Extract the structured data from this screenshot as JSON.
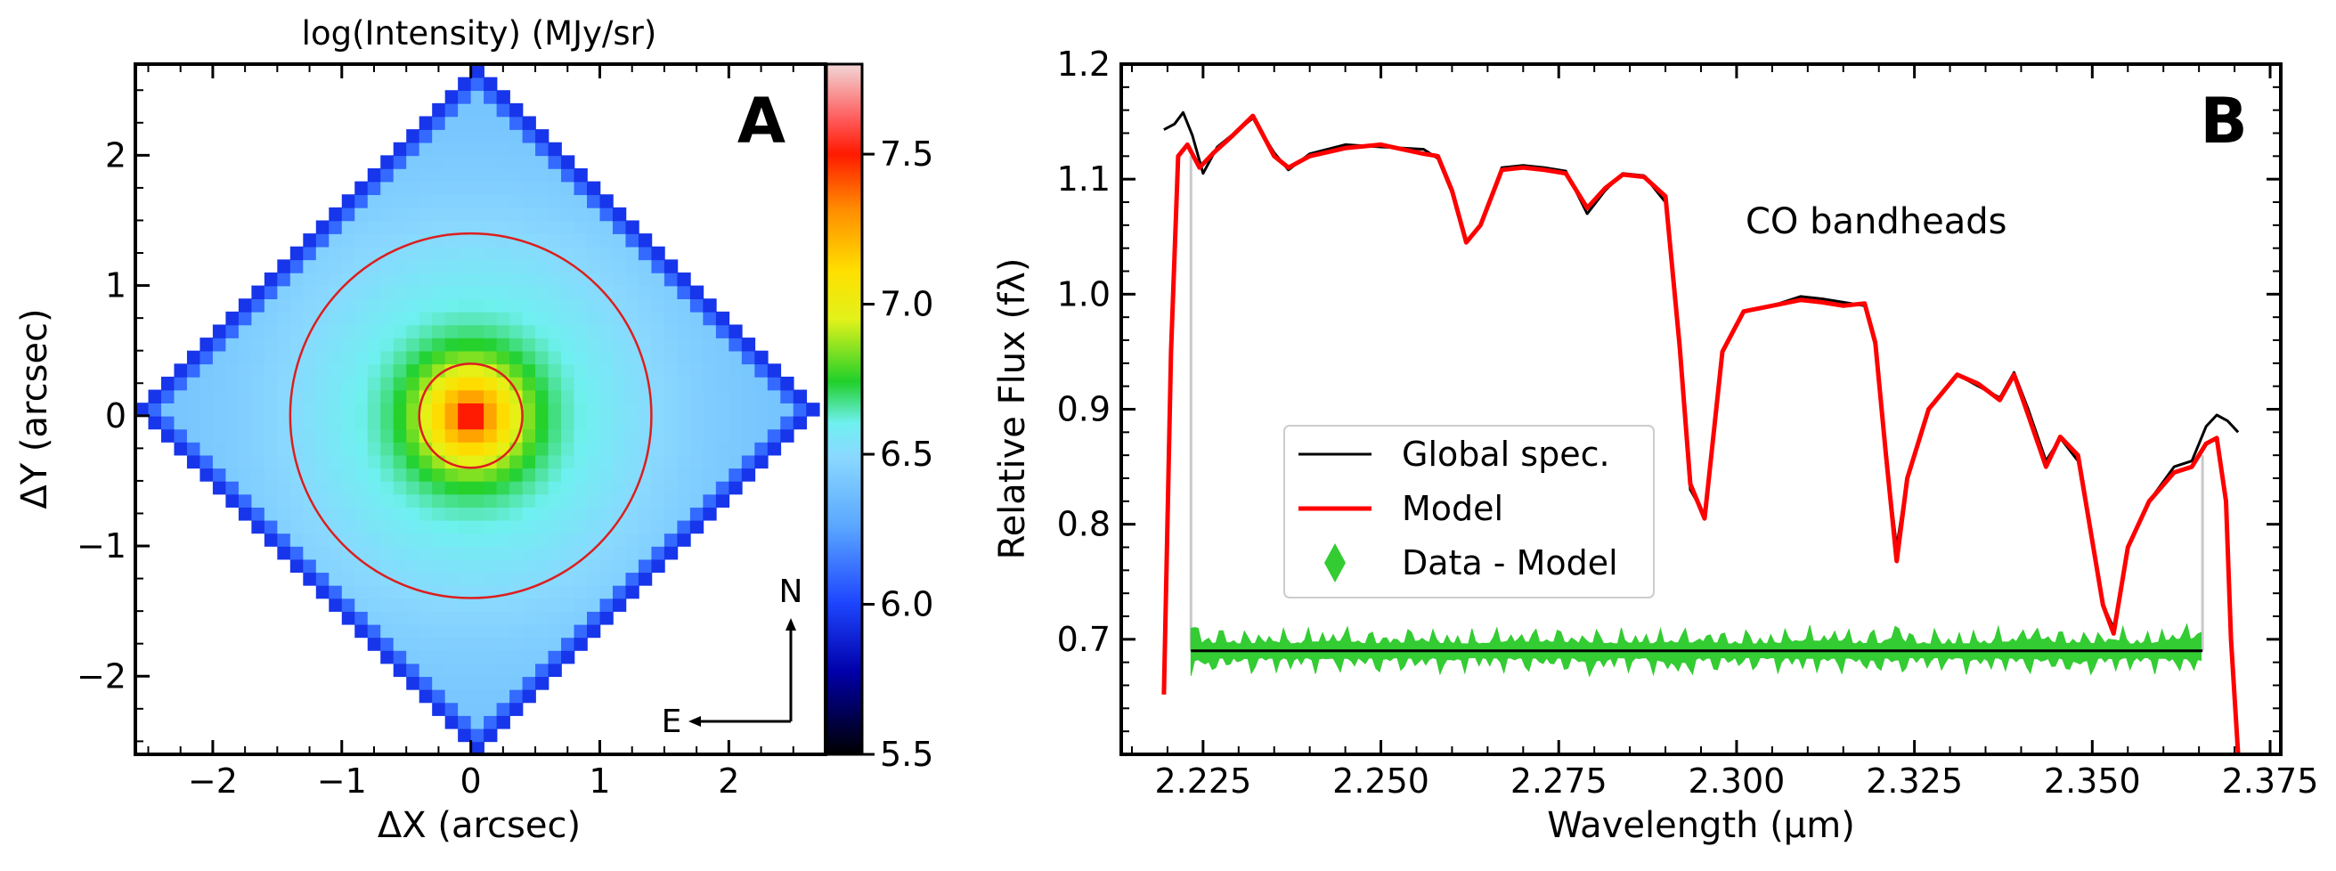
{
  "chart_data": [
    {
      "type": "heatmap",
      "panel_label": "A",
      "title": "log(Intensity) (MJy/sr)",
      "xlabel": "ΔX (arcsec)",
      "ylabel": "ΔY (arcsec)",
      "xlim": [
        -2.6,
        2.75
      ],
      "ylim": [
        -2.6,
        2.7
      ],
      "xticks": [
        -2,
        -1,
        0,
        1,
        2
      ],
      "xtick_labels": [
        "−2",
        "−1",
        "0",
        "1",
        "2"
      ],
      "yticks": [
        -2,
        -1,
        0,
        1,
        2
      ],
      "ytick_labels": [
        "−2",
        "−1",
        "0",
        "1",
        "2"
      ],
      "field_center": [
        0.05,
        0.05
      ],
      "field_halfwidth": 2.63,
      "pixel_scale": 0.1,
      "peak_value": 7.7,
      "core_value": 7.35,
      "core_width": 0.28,
      "halo_value": 6.7,
      "halo_width": 1.0,
      "outer_value": 6.38,
      "circles": [
        {
          "center": [
            0,
            0
          ],
          "radius": 0.4,
          "color": "#dc1e1e"
        },
        {
          "center": [
            0,
            0
          ],
          "radius": 1.4,
          "color": "#dc1e1e"
        }
      ],
      "colorbar": {
        "min": 5.5,
        "max": 7.8,
        "ticks": [
          5.5,
          6.0,
          6.5,
          7.0,
          7.5
        ],
        "tick_labels": [
          "5.5",
          "6.0",
          "6.5",
          "7.0",
          "7.5"
        ]
      },
      "compass": {
        "north": "N",
        "east": "E"
      }
    },
    {
      "type": "line",
      "panel_label": "B",
      "xlabel": "Wavelength (μm)",
      "ylabel": "Relative Flux (fλ)",
      "xlim": [
        2.2135,
        2.3765
      ],
      "ylim": [
        0.6,
        1.2
      ],
      "xticks": [
        2.225,
        2.25,
        2.275,
        2.3,
        2.325,
        2.35,
        2.375
      ],
      "xtick_labels": [
        "2.225",
        "2.250",
        "2.275",
        "2.300",
        "2.325",
        "2.350",
        "2.375"
      ],
      "yticks": [
        0.7,
        0.8,
        0.9,
        1.0,
        1.1,
        1.2
      ],
      "ytick_labels": [
        "0.7",
        "0.8",
        "0.9",
        "1.0",
        "1.1",
        "1.2"
      ],
      "annotation": "CO bandheads",
      "fit_window": [
        2.2233,
        2.3655
      ],
      "residual_offset": 0.69,
      "series": [
        {
          "name": "Global spec.",
          "color": "#000000",
          "x": [
            2.2195,
            2.221,
            2.2222,
            2.2235,
            2.225,
            2.227,
            2.229,
            2.232,
            2.235,
            2.237,
            2.24,
            2.245,
            2.25,
            2.253,
            2.256,
            2.258,
            2.26,
            2.262,
            2.264,
            2.267,
            2.27,
            2.273,
            2.276,
            2.279,
            2.2815,
            2.284,
            2.287,
            2.29,
            2.292,
            2.2935,
            2.2955,
            2.298,
            2.301,
            2.305,
            2.309,
            2.312,
            2.315,
            2.318,
            2.3195,
            2.321,
            2.3225,
            2.324,
            2.327,
            2.331,
            2.334,
            2.337,
            2.339,
            2.341,
            2.3435,
            2.3455,
            2.348,
            2.3515,
            2.353,
            2.355,
            2.358,
            2.3615,
            2.364,
            2.366,
            2.3675,
            2.369,
            2.3705
          ],
          "y": [
            1.143,
            1.148,
            1.158,
            1.138,
            1.105,
            1.128,
            1.138,
            1.153,
            1.123,
            1.108,
            1.122,
            1.13,
            1.128,
            1.127,
            1.126,
            1.118,
            1.088,
            1.045,
            1.06,
            1.11,
            1.112,
            1.11,
            1.107,
            1.07,
            1.09,
            1.105,
            1.103,
            1.08,
            0.95,
            0.83,
            0.808,
            0.95,
            0.985,
            0.99,
            0.998,
            0.996,
            0.993,
            0.99,
            0.955,
            0.86,
            0.78,
            0.84,
            0.9,
            0.93,
            0.92,
            0.91,
            0.932,
            0.9,
            0.855,
            0.875,
            0.855,
            0.73,
            0.71,
            0.78,
            0.82,
            0.85,
            0.855,
            0.885,
            0.895,
            0.89,
            0.88
          ]
        },
        {
          "name": "Model",
          "color": "#ff0000",
          "x": [
            2.2195,
            2.2205,
            2.2215,
            2.2228,
            2.2245,
            2.2265,
            2.229,
            2.232,
            2.235,
            2.237,
            2.24,
            2.245,
            2.25,
            2.253,
            2.256,
            2.258,
            2.26,
            2.262,
            2.264,
            2.267,
            2.27,
            2.273,
            2.276,
            2.279,
            2.2815,
            2.284,
            2.287,
            2.29,
            2.292,
            2.2935,
            2.2955,
            2.298,
            2.301,
            2.305,
            2.309,
            2.312,
            2.315,
            2.318,
            2.3195,
            2.321,
            2.3225,
            2.324,
            2.327,
            2.331,
            2.334,
            2.337,
            2.339,
            2.341,
            2.3435,
            2.3455,
            2.348,
            2.3515,
            2.353,
            2.355,
            2.358,
            2.3615,
            2.364,
            2.366,
            2.3675,
            2.3688,
            2.3695,
            2.3705
          ],
          "y": [
            0.652,
            0.95,
            1.12,
            1.13,
            1.11,
            1.123,
            1.137,
            1.155,
            1.12,
            1.11,
            1.12,
            1.127,
            1.13,
            1.126,
            1.122,
            1.12,
            1.09,
            1.045,
            1.06,
            1.108,
            1.11,
            1.108,
            1.105,
            1.075,
            1.092,
            1.104,
            1.102,
            1.085,
            0.955,
            0.835,
            0.805,
            0.95,
            0.985,
            0.99,
            0.995,
            0.993,
            0.99,
            0.992,
            0.958,
            0.86,
            0.768,
            0.84,
            0.9,
            0.93,
            0.922,
            0.908,
            0.93,
            0.895,
            0.85,
            0.876,
            0.86,
            0.73,
            0.705,
            0.78,
            0.82,
            0.845,
            0.85,
            0.87,
            0.875,
            0.82,
            0.7,
            0.6
          ]
        },
        {
          "name": "Data - Model",
          "color": "#33cc33",
          "marker": "thin_diamond",
          "note": "Residuals plotted about the offset value; grey vertical lines mark the fit window"
        }
      ],
      "legend": {
        "location": "center-left",
        "entries": [
          "Global spec.",
          "Model",
          "Data - Model"
        ]
      }
    }
  ]
}
